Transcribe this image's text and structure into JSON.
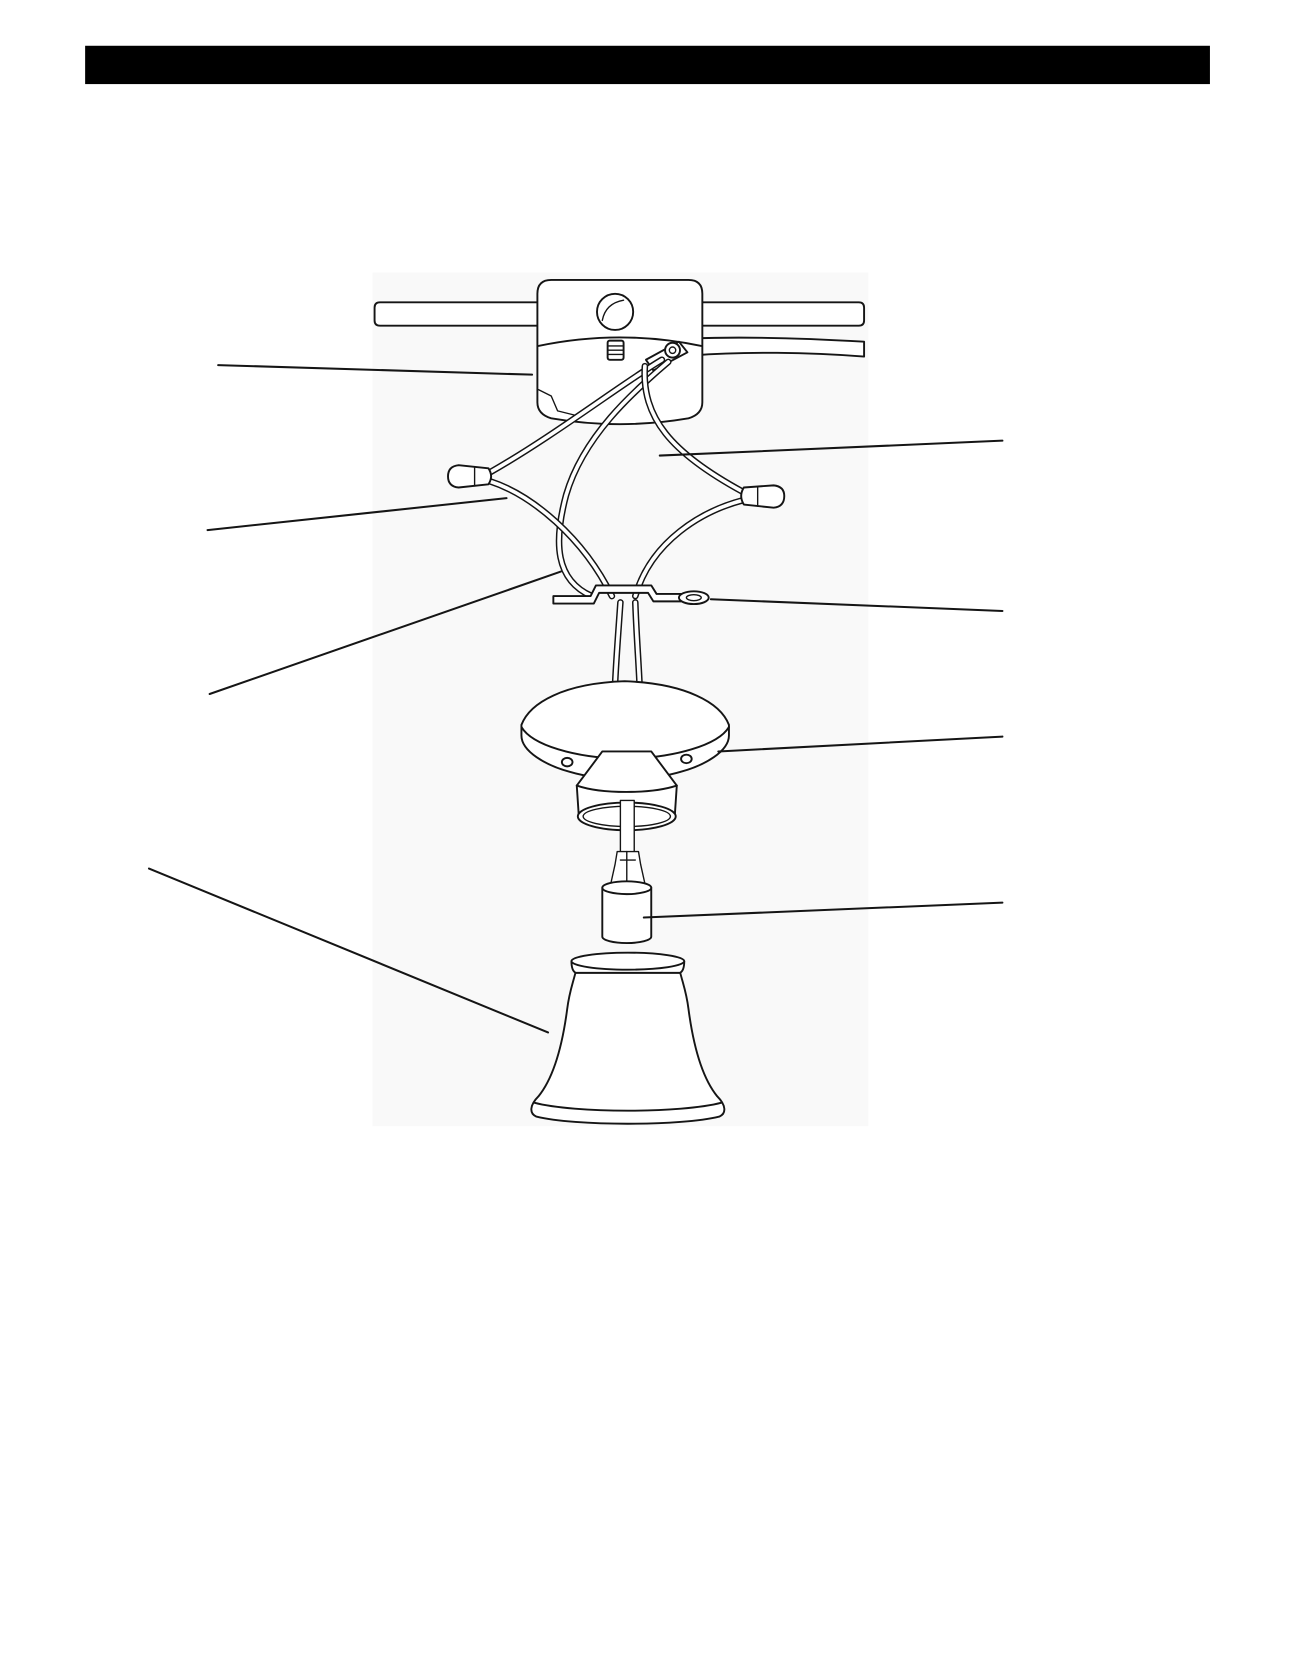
{
  "page": {
    "background": "#ffffff"
  },
  "header": {
    "bar_color": "#000000"
  },
  "diagram": {
    "panel_color": "#f9f9f9",
    "line_color": "#151515",
    "part_fill": "#ffffff"
  }
}
